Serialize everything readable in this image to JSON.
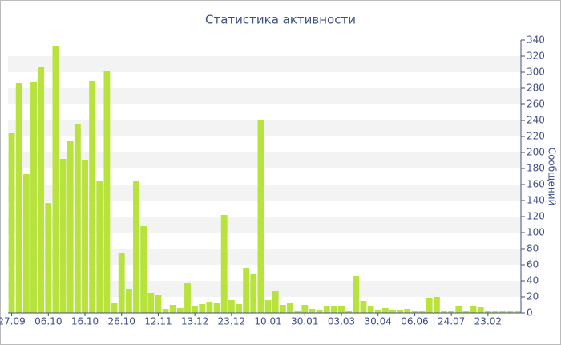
{
  "chart_data": {
    "type": "bar",
    "title": "Статистика активности",
    "y_label": "Сообщений",
    "categories": [
      "27.09",
      null,
      null,
      null,
      null,
      "06.10",
      null,
      null,
      null,
      null,
      "16.10",
      null,
      null,
      null,
      null,
      "26.10",
      null,
      null,
      null,
      null,
      "12.11",
      null,
      null,
      null,
      null,
      "13.12",
      null,
      null,
      null,
      null,
      "23.12",
      null,
      null,
      null,
      null,
      "10.01",
      null,
      null,
      null,
      null,
      "30.01",
      null,
      null,
      null,
      null,
      "03.03",
      null,
      null,
      null,
      null,
      "30.04",
      null,
      null,
      null,
      null,
      "06.06",
      null,
      null,
      null,
      null,
      "24.07",
      null,
      null,
      null,
      null,
      "23.02",
      null,
      null,
      null,
      null
    ],
    "values": [
      224,
      287,
      173,
      288,
      306,
      137,
      333,
      192,
      214,
      235,
      191,
      289,
      164,
      302,
      12,
      75,
      30,
      165,
      108,
      25,
      22,
      5,
      10,
      6,
      37,
      8,
      11,
      13,
      12,
      122,
      16,
      11,
      56,
      48,
      240,
      16,
      27,
      10,
      12,
      2,
      10,
      5,
      4,
      9,
      8,
      9,
      2,
      46,
      15,
      8,
      4,
      6,
      4,
      4,
      5,
      2,
      2,
      18,
      20,
      2,
      2,
      9,
      2,
      8,
      7,
      2,
      2,
      2,
      2,
      2
    ],
    "color": "#b8e23c",
    "ylim": [
      0,
      340
    ],
    "yticks": [
      0,
      20,
      40,
      60,
      80,
      100,
      120,
      140,
      160,
      180,
      200,
      220,
      240,
      260,
      280,
      300,
      320,
      340
    ],
    "grid": "bands",
    "y_axis_side": "right"
  }
}
